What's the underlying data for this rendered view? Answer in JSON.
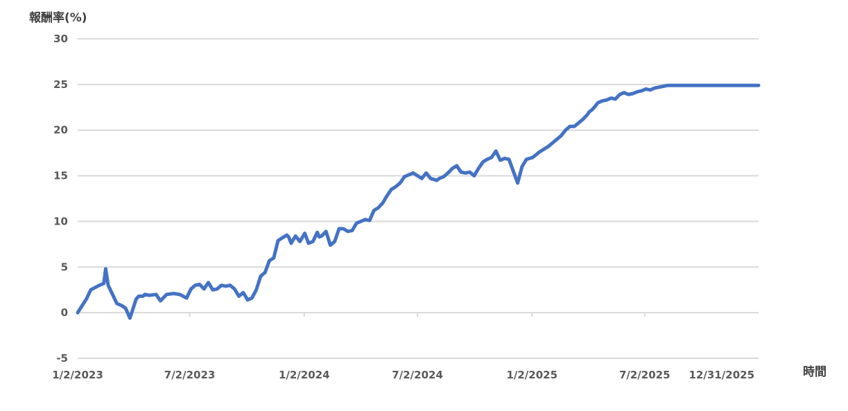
{
  "chart_data": {
    "type": "line",
    "title": "",
    "ylabel": "報酬率(%)",
    "xlabel": "時間",
    "ylim": [
      -5,
      30
    ],
    "y_ticks": [
      "-5",
      "0",
      "5",
      "10",
      "15",
      "20",
      "25",
      "30"
    ],
    "x_ticks": [
      "1/2/2023",
      "7/2/2023",
      "1/2/2024",
      "7/2/2024",
      "1/2/2025",
      "7/2/2025",
      "12/31/2025"
    ],
    "grid": true,
    "legend": "none",
    "colors": {
      "line": "#4472c4",
      "grid": "#d9d9d9",
      "label": "#595959"
    },
    "series": [
      {
        "x": [
          "2023-01-02",
          "2023-01-16",
          "2023-01-23",
          "2023-02-06",
          "2023-02-13",
          "2023-02-16",
          "2023-02-20",
          "2023-02-27",
          "2023-03-06",
          "2023-03-13",
          "2023-03-20",
          "2023-03-27",
          "2023-04-06",
          "2023-04-10",
          "2023-04-17",
          "2023-04-20",
          "2023-04-27",
          "2023-05-08",
          "2023-05-15",
          "2023-05-25",
          "2023-06-05",
          "2023-06-15",
          "2023-06-26",
          "2023-07-03",
          "2023-07-10",
          "2023-07-17",
          "2023-07-24",
          "2023-07-31",
          "2023-08-07",
          "2023-08-14",
          "2023-08-21",
          "2023-08-28",
          "2023-09-04",
          "2023-09-11",
          "2023-09-18",
          "2023-09-25",
          "2023-10-02",
          "2023-10-09",
          "2023-10-16",
          "2023-10-23",
          "2023-10-30",
          "2023-11-06",
          "2023-11-13",
          "2023-11-20",
          "2023-11-27",
          "2023-12-04",
          "2023-12-07",
          "2023-12-11",
          "2023-12-18",
          "2023-12-25",
          "2024-01-02",
          "2024-01-08",
          "2024-01-15",
          "2024-01-22",
          "2024-01-25",
          "2024-01-29",
          "2024-02-05",
          "2024-02-12",
          "2024-02-19",
          "2024-02-26",
          "2024-03-04",
          "2024-03-11",
          "2024-03-18",
          "2024-03-25",
          "2024-04-08",
          "2024-04-15",
          "2024-04-22",
          "2024-04-29",
          "2024-05-06",
          "2024-05-13",
          "2024-05-20",
          "2024-05-27",
          "2024-06-03",
          "2024-06-10",
          "2024-06-17",
          "2024-06-24",
          "2024-07-08",
          "2024-07-15",
          "2024-07-22",
          "2024-08-01",
          "2024-08-05",
          "2024-08-12",
          "2024-08-19",
          "2024-08-26",
          "2024-09-02",
          "2024-09-09",
          "2024-09-16",
          "2024-09-23",
          "2024-09-30",
          "2024-10-07",
          "2024-10-14",
          "2024-10-21",
          "2024-10-28",
          "2024-11-04",
          "2024-11-11",
          "2024-11-18",
          "2024-11-25",
          "2024-12-02",
          "2024-12-09",
          "2024-12-16",
          "2024-12-23",
          "2025-01-02",
          "2025-01-13",
          "2025-01-20",
          "2025-01-27",
          "2025-02-03",
          "2025-02-10",
          "2025-02-17",
          "2025-02-24",
          "2025-03-03",
          "2025-03-10",
          "2025-03-17",
          "2025-03-24",
          "2025-03-31",
          "2025-04-03",
          "2025-04-07",
          "2025-04-10",
          "2025-04-17",
          "2025-04-24",
          "2025-05-01",
          "2025-05-08",
          "2025-05-15",
          "2025-05-22",
          "2025-05-29",
          "2025-06-05",
          "2025-06-12",
          "2025-06-19",
          "2025-06-26",
          "2025-07-03",
          "2025-07-10",
          "2025-07-17",
          "2025-07-24",
          "2025-07-31",
          "2025-08-07",
          "2025-08-14",
          "2025-08-21",
          "2025-08-28",
          "2025-09-04",
          "2025-09-11",
          "2025-09-18",
          "2025-09-25",
          "2025-10-02",
          "2025-10-09",
          "2025-10-16",
          "2025-10-23",
          "2025-10-30",
          "2025-11-06",
          "2025-11-13",
          "2025-11-20",
          "2025-11-27",
          "2025-12-04",
          "2025-12-11",
          "2025-12-18",
          "2025-12-25",
          "2025-12-31"
        ],
        "values": [
          0.0,
          1.5,
          2.5,
          3.0,
          3.2,
          4.8,
          3.0,
          2.0,
          1.0,
          0.8,
          0.5,
          -0.6,
          1.5,
          1.8,
          1.8,
          2.0,
          1.9,
          2.0,
          1.3,
          2.0,
          2.1,
          2.0,
          1.6,
          2.6,
          3.0,
          3.1,
          2.6,
          3.3,
          2.5,
          2.6,
          3.0,
          2.9,
          3.0,
          2.6,
          1.8,
          2.2,
          1.4,
          1.6,
          2.5,
          4.0,
          4.4,
          5.7,
          6.0,
          7.9,
          8.2,
          8.5,
          8.3,
          7.6,
          8.4,
          7.8,
          8.7,
          7.6,
          7.8,
          8.8,
          8.3,
          8.4,
          8.9,
          7.4,
          7.8,
          9.2,
          9.2,
          8.9,
          9.0,
          9.8,
          10.2,
          10.1,
          11.2,
          11.5,
          12.0,
          12.8,
          13.5,
          13.8,
          14.2,
          14.9,
          15.1,
          15.3,
          14.7,
          15.3,
          14.7,
          14.5,
          14.7,
          14.9,
          15.3,
          15.8,
          16.1,
          15.4,
          15.3,
          15.4,
          15.0,
          15.8,
          16.5,
          16.8,
          17.0,
          17.7,
          16.7,
          16.9,
          16.8,
          15.5,
          14.2,
          16.0,
          16.8,
          17.0,
          17.6,
          17.9,
          18.2,
          18.6,
          19.0,
          19.4,
          20.0,
          20.4,
          20.4,
          20.8,
          21.2,
          21.7,
          22.0,
          22.2,
          22.4,
          23.0,
          23.2,
          23.3,
          23.5,
          23.4,
          23.9,
          24.1,
          23.9,
          24.0,
          24.2,
          24.3,
          24.5,
          24.4,
          24.6,
          24.7,
          24.8,
          24.9,
          24.9,
          24.9,
          24.9,
          24.9,
          24.9,
          24.9,
          24.9,
          24.9,
          24.9,
          24.9,
          24.9,
          24.9,
          24.9,
          24.9,
          24.9,
          24.9,
          24.9,
          24.9,
          24.9,
          24.9,
          24.9
        ]
      }
    ]
  }
}
